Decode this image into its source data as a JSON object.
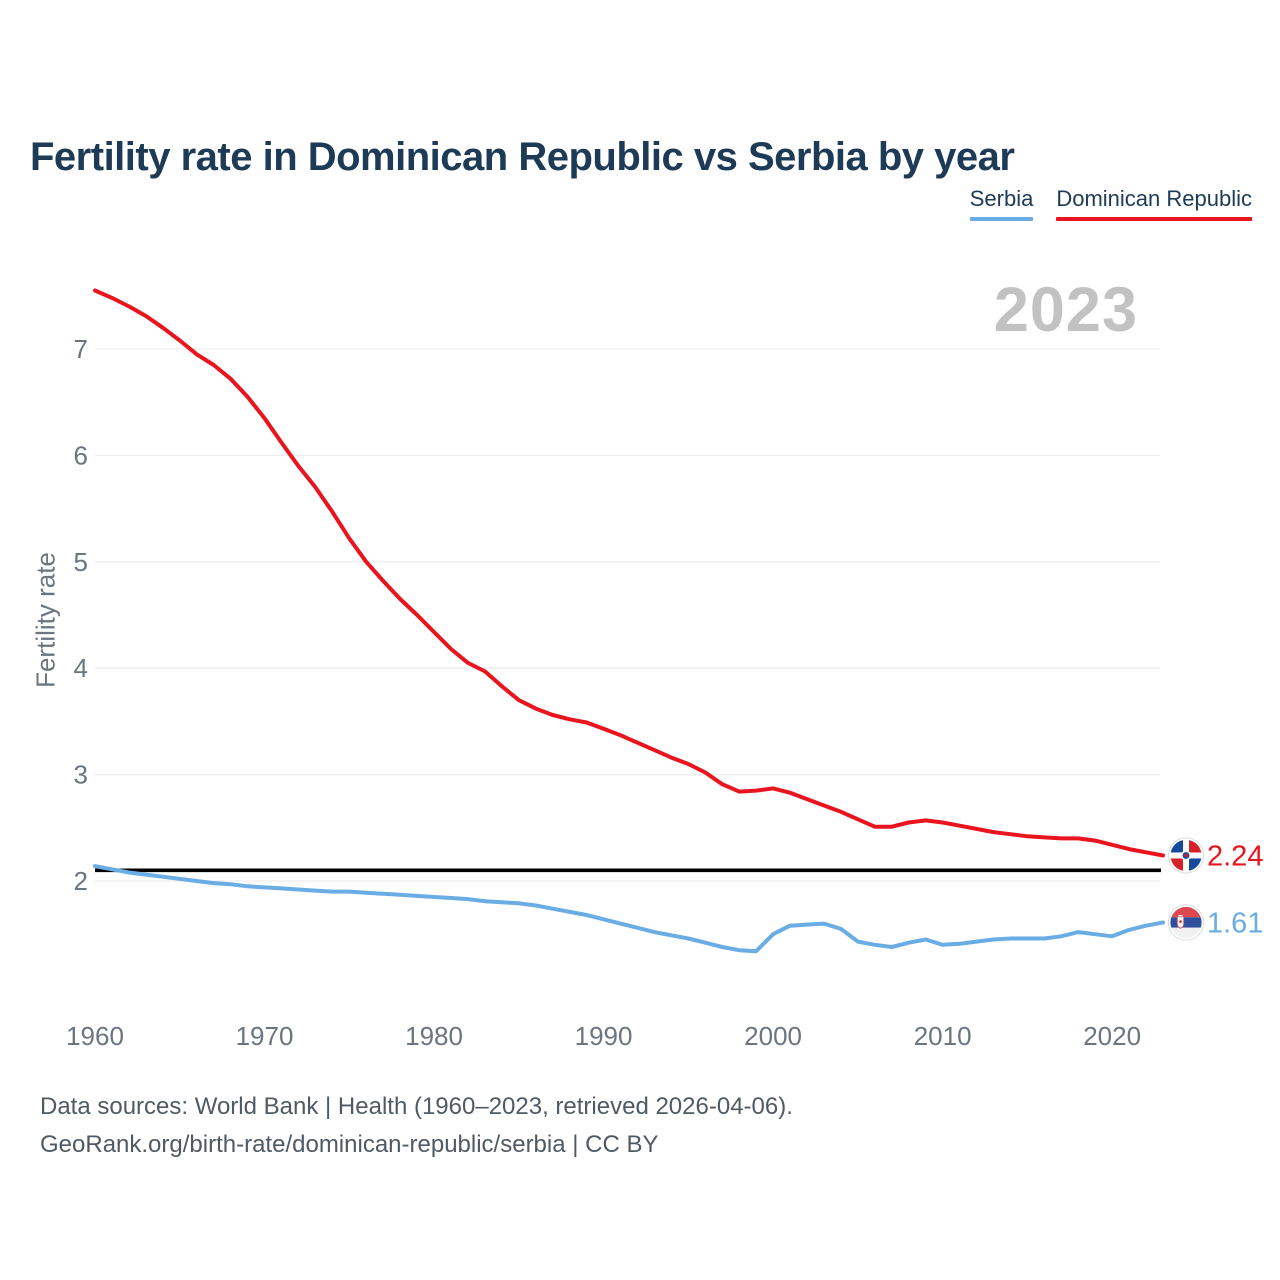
{
  "page": {
    "title": "Fertility rate in Dominican Republic vs Serbia by year",
    "footer": {
      "line1": "Data sources: World Bank | Health (1960–2023, retrieved 2026-04-06).",
      "line2": "GeoRank.org/birth-rate/dominican-republic/serbia | CC BY"
    }
  },
  "legend": {
    "items": [
      {
        "label": "Dominican Republic",
        "color": "#e9141d"
      },
      {
        "label": "Serbia",
        "color": "#6aade4"
      }
    ]
  },
  "chart_data": {
    "type": "line",
    "title": "Fertility rate in Dominican Republic vs Serbia by year",
    "ylabel": "Fertility rate",
    "xlabel": "",
    "year_watermark": "2023",
    "x_range": [
      1960,
      2023
    ],
    "xticks": [
      1960,
      1970,
      1980,
      1990,
      2000,
      2010,
      2020
    ],
    "yticks": [
      2,
      3,
      4,
      5,
      6,
      7
    ],
    "ylim": [
      1.2,
      7.8
    ],
    "grid": "horizontal",
    "reference_line": {
      "value": 2.1,
      "color": "#000000"
    },
    "series": [
      {
        "name": "Serbia",
        "color": "#6aade4",
        "flag": "serbia",
        "end_label": "1.61",
        "x_start": 1960,
        "values": [
          2.14,
          2.11,
          2.08,
          2.06,
          2.04,
          2.02,
          2.0,
          1.98,
          1.97,
          1.95,
          1.94,
          1.93,
          1.92,
          1.91,
          1.9,
          1.9,
          1.89,
          1.88,
          1.87,
          1.86,
          1.85,
          1.84,
          1.83,
          1.81,
          1.8,
          1.79,
          1.77,
          1.74,
          1.71,
          1.68,
          1.64,
          1.6,
          1.56,
          1.52,
          1.49,
          1.46,
          1.42,
          1.38,
          1.35,
          1.34,
          1.5,
          1.58,
          1.59,
          1.6,
          1.55,
          1.43,
          1.4,
          1.38,
          1.42,
          1.45,
          1.4,
          1.41,
          1.43,
          1.45,
          1.46,
          1.46,
          1.46,
          1.48,
          1.52,
          1.5,
          1.48,
          1.54,
          1.58,
          1.61
        ]
      },
      {
        "name": "Dominican Republic",
        "color": "#e9141d",
        "flag": "dominican-republic",
        "end_label": "2.24",
        "x_start": 1960,
        "values": [
          7.55,
          7.48,
          7.4,
          7.31,
          7.2,
          7.08,
          6.95,
          6.85,
          6.72,
          6.55,
          6.35,
          6.12,
          5.9,
          5.7,
          5.47,
          5.22,
          5.0,
          4.82,
          4.65,
          4.5,
          4.34,
          4.18,
          4.05,
          3.97,
          3.83,
          3.7,
          3.62,
          3.56,
          3.52,
          3.49,
          3.43,
          3.37,
          3.3,
          3.23,
          3.16,
          3.1,
          3.02,
          2.91,
          2.84,
          2.85,
          2.87,
          2.83,
          2.77,
          2.71,
          2.65,
          2.58,
          2.51,
          2.51,
          2.55,
          2.57,
          2.55,
          2.52,
          2.49,
          2.46,
          2.44,
          2.42,
          2.41,
          2.4,
          2.4,
          2.38,
          2.34,
          2.3,
          2.27,
          2.24
        ]
      }
    ]
  }
}
